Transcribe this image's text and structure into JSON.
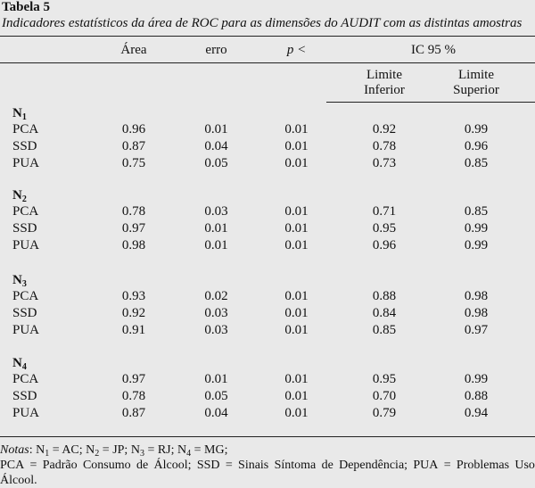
{
  "title": "Tabela 5",
  "subtitle": "Indicadores estatísticos da área de ROC para as dimensões do AUDIT com as distintas amostras",
  "headers": {
    "area": "Área",
    "erro": "erro",
    "p": "p <",
    "ic": "IC 95 %",
    "lim_inf_1": "Limite",
    "lim_inf_2": "Inferior",
    "lim_sup_1": "Limite",
    "lim_sup_2": "Superior"
  },
  "groups": [
    {
      "label": "N",
      "sub": "1",
      "rows": [
        [
          "PCA",
          "0.96",
          "0.01",
          "0.01",
          "0.92",
          "0.99"
        ],
        [
          "SSD",
          "0.87",
          "0.04",
          "0.01",
          "0.78",
          "0.96"
        ],
        [
          "PUA",
          "0.75",
          "0.05",
          "0.01",
          "0.73",
          "0.85"
        ]
      ]
    },
    {
      "label": "N",
      "sub": "2",
      "rows": [
        [
          "PCA",
          "0.78",
          "0.03",
          "0.01",
          "0.71",
          "0.85"
        ],
        [
          "SSD",
          "0.97",
          "0.01",
          "0.01",
          "0.95",
          "0.99"
        ],
        [
          "PUA",
          "0.98",
          "0.01",
          "0.01",
          "0.96",
          "0.99"
        ]
      ]
    },
    {
      "label": "N",
      "sub": "3",
      "rows": [
        [
          "PCA",
          "0.93",
          "0.02",
          "0.01",
          "0.88",
          "0.98"
        ],
        [
          "SSD",
          "0.92",
          "0.03",
          "0.01",
          "0.84",
          "0.98"
        ],
        [
          "PUA",
          "0.91",
          "0.03",
          "0.01",
          "0.85",
          "0.97"
        ]
      ]
    },
    {
      "label": "N",
      "sub": "4",
      "rows": [
        [
          "PCA",
          "0.97",
          "0.01",
          "0.01",
          "0.95",
          "0.99"
        ],
        [
          "SSD",
          "0.78",
          "0.05",
          "0.01",
          "0.70",
          "0.88"
        ],
        [
          "PUA",
          "0.87",
          "0.04",
          "0.01",
          "0.79",
          "0.94"
        ]
      ]
    }
  ],
  "notes": {
    "label": "Notas",
    "defs": [
      {
        "n": "N",
        "s": "1",
        "v": "AC"
      },
      {
        "n": "N",
        "s": "2",
        "v": "JP"
      },
      {
        "n": "N",
        "s": "3",
        "v": "RJ"
      },
      {
        "n": "N",
        "s": "4",
        "v": "MG"
      }
    ],
    "line2_words": [
      "PCA",
      "=",
      "Padrão",
      "Consumo",
      "de",
      "Álcool;",
      "SSD",
      "=",
      "Sinais",
      "Síntoma",
      "de",
      "Dependência;",
      "PUA",
      "=",
      "Problemas",
      "Uso"
    ],
    "line3": "Álcool."
  }
}
